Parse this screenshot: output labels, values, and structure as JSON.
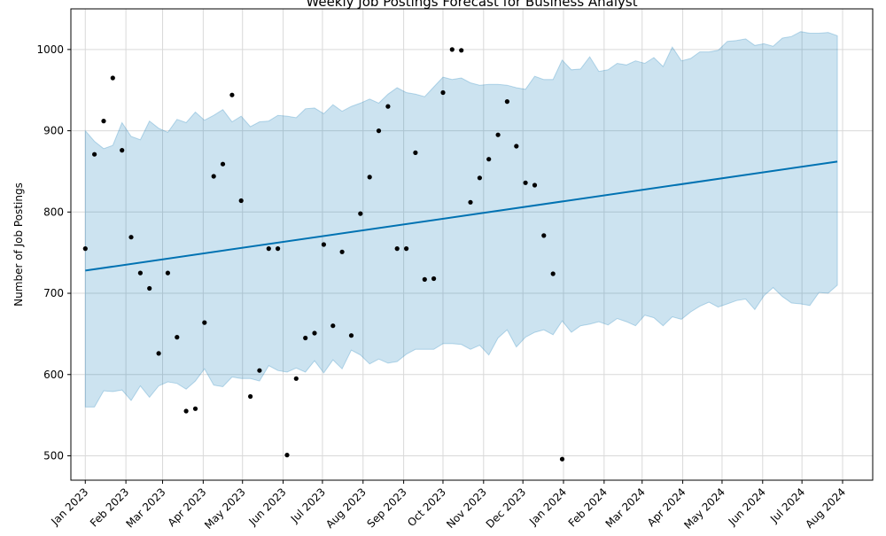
{
  "chart_data": {
    "type": "line",
    "title": "Weekly Job Postings Forecast for Business Analyst",
    "xlabel": "",
    "ylabel": "Number of Job Postings",
    "x_range": [
      "2022-12-21",
      "2024-08-24"
    ],
    "ylim": [
      470,
      1050
    ],
    "grid": true,
    "x_tick_labels": [
      "Jan 2023",
      "Feb 2023",
      "Mar 2023",
      "Apr 2023",
      "May 2023",
      "Jun 2023",
      "Jul 2023",
      "Aug 2023",
      "Sep 2023",
      "Oct 2023",
      "Nov 2023",
      "Dec 2023",
      "Jan 2024",
      "Feb 2024",
      "Mar 2024",
      "Apr 2024",
      "May 2024",
      "Jun 2024",
      "Jul 2024",
      "Aug 2024"
    ],
    "x_tick_dates": [
      "2023-01-01",
      "2023-02-01",
      "2023-03-01",
      "2023-04-01",
      "2023-05-01",
      "2023-06-01",
      "2023-07-01",
      "2023-08-01",
      "2023-09-01",
      "2023-10-01",
      "2023-11-01",
      "2023-12-01",
      "2024-01-01",
      "2024-02-01",
      "2024-03-01",
      "2024-04-01",
      "2024-05-01",
      "2024-06-01",
      "2024-07-01",
      "2024-08-01"
    ],
    "y_ticks": [
      500,
      600,
      700,
      800,
      900,
      1000
    ],
    "colors": {
      "forecast": "#0072B2",
      "interval_fill": "#0072B2",
      "observed": "#000000",
      "grid": "#d9d9d9"
    },
    "series": [
      {
        "type": "scatter",
        "x": [
          "2023-01-01",
          "2023-01-08",
          "2023-01-15",
          "2023-01-22",
          "2023-01-29",
          "2023-02-05",
          "2023-02-12",
          "2023-02-19",
          "2023-02-26",
          "2023-03-05",
          "2023-03-12",
          "2023-03-19",
          "2023-03-26",
          "2023-04-02",
          "2023-04-09",
          "2023-04-16",
          "2023-04-23",
          "2023-04-30",
          "2023-05-07",
          "2023-05-14",
          "2023-05-21",
          "2023-05-28",
          "2023-06-04",
          "2023-06-11",
          "2023-06-18",
          "2023-06-25",
          "2023-07-02",
          "2023-07-09",
          "2023-07-16",
          "2023-07-23",
          "2023-07-30",
          "2023-08-06",
          "2023-08-13",
          "2023-08-20",
          "2023-08-27",
          "2023-09-03",
          "2023-09-10",
          "2023-09-17",
          "2023-09-24",
          "2023-10-01",
          "2023-10-08",
          "2023-10-15",
          "2023-10-22",
          "2023-10-29",
          "2023-11-05",
          "2023-11-12",
          "2023-11-19",
          "2023-11-26",
          "2023-12-03",
          "2023-12-10",
          "2023-12-17",
          "2023-12-24",
          "2023-12-31"
        ],
        "values": [
          755,
          871,
          912,
          965,
          876,
          769,
          725,
          706,
          626,
          725,
          646,
          555,
          558,
          664,
          844,
          859,
          944,
          814,
          573,
          605,
          755,
          755,
          501,
          595,
          645,
          651,
          760,
          660,
          751,
          648,
          798,
          843,
          900,
          930,
          755,
          755,
          873,
          717,
          718,
          947,
          1000,
          999,
          812,
          842,
          865,
          895,
          936,
          881,
          836,
          833,
          771,
          724,
          496
        ]
      },
      {
        "type": "line",
        "x": [
          "2023-01-01",
          "2024-07-28"
        ],
        "values": [
          728,
          862
        ]
      },
      {
        "type": "area",
        "x": [
          "2023-01-01",
          "2023-01-08",
          "2023-01-15",
          "2023-01-22",
          "2023-01-29",
          "2023-02-05",
          "2023-02-12",
          "2023-02-19",
          "2023-02-26",
          "2023-03-05",
          "2023-03-12",
          "2023-03-19",
          "2023-03-26",
          "2023-04-02",
          "2023-04-09",
          "2023-04-16",
          "2023-04-23",
          "2023-04-30",
          "2023-05-07",
          "2023-05-14",
          "2023-05-21",
          "2023-05-28",
          "2023-06-04",
          "2023-06-11",
          "2023-06-18",
          "2023-06-25",
          "2023-07-02",
          "2023-07-09",
          "2023-07-16",
          "2023-07-23",
          "2023-07-30",
          "2023-08-06",
          "2023-08-13",
          "2023-08-20",
          "2023-08-27",
          "2023-09-03",
          "2023-09-10",
          "2023-09-17",
          "2023-09-24",
          "2023-10-01",
          "2023-10-08",
          "2023-10-15",
          "2023-10-22",
          "2023-10-29",
          "2023-11-05",
          "2023-11-12",
          "2023-11-19",
          "2023-11-26",
          "2023-12-03",
          "2023-12-10",
          "2023-12-17",
          "2023-12-24",
          "2023-12-31",
          "2024-01-07",
          "2024-01-14",
          "2024-01-21",
          "2024-01-28",
          "2024-02-04",
          "2024-02-11",
          "2024-02-18",
          "2024-02-25",
          "2024-03-03",
          "2024-03-10",
          "2024-03-17",
          "2024-03-24",
          "2024-03-31",
          "2024-04-07",
          "2024-04-14",
          "2024-04-21",
          "2024-04-28",
          "2024-05-05",
          "2024-05-12",
          "2024-05-19",
          "2024-05-26",
          "2024-06-02",
          "2024-06-09",
          "2024-06-16",
          "2024-06-23",
          "2024-06-30",
          "2024-07-07",
          "2024-07-14",
          "2024-07-21",
          "2024-07-28"
        ],
        "upper": [
          900,
          887,
          878,
          882,
          910,
          893,
          889,
          912,
          903,
          898,
          914,
          910,
          923,
          913,
          919,
          926,
          911,
          918,
          905,
          911,
          912,
          919,
          918,
          916,
          927,
          928,
          921,
          932,
          924,
          930,
          934,
          939,
          934,
          945,
          953,
          947,
          945,
          942,
          954,
          966,
          963,
          965,
          959,
          956,
          957,
          957,
          956,
          953,
          951,
          967,
          963,
          963,
          987,
          975,
          976,
          991,
          973,
          975,
          983,
          981,
          986,
          983,
          990,
          979,
          1003,
          986,
          989,
          997,
          997,
          999,
          1010,
          1011,
          1013,
          1005,
          1007,
          1004,
          1014,
          1016,
          1022,
          1020,
          1020,
          1021,
          1017
        ],
        "lower": [
          560,
          560,
          580,
          579,
          581,
          568,
          586,
          572,
          586,
          591,
          589,
          582,
          592,
          607,
          587,
          585,
          597,
          595,
          595,
          592,
          611,
          605,
          603,
          608,
          603,
          617,
          602,
          618,
          607,
          630,
          624,
          613,
          619,
          614,
          616,
          625,
          631,
          631,
          631,
          638,
          638,
          637,
          631,
          636,
          624,
          645,
          655,
          634,
          646,
          652,
          655,
          649,
          666,
          652,
          660,
          662,
          665,
          661,
          669,
          665,
          660,
          673,
          670,
          660,
          671,
          668,
          677,
          684,
          689,
          683,
          687,
          691,
          693,
          680,
          697,
          707,
          696,
          688,
          687,
          685,
          701,
          700,
          710
        ]
      }
    ]
  }
}
